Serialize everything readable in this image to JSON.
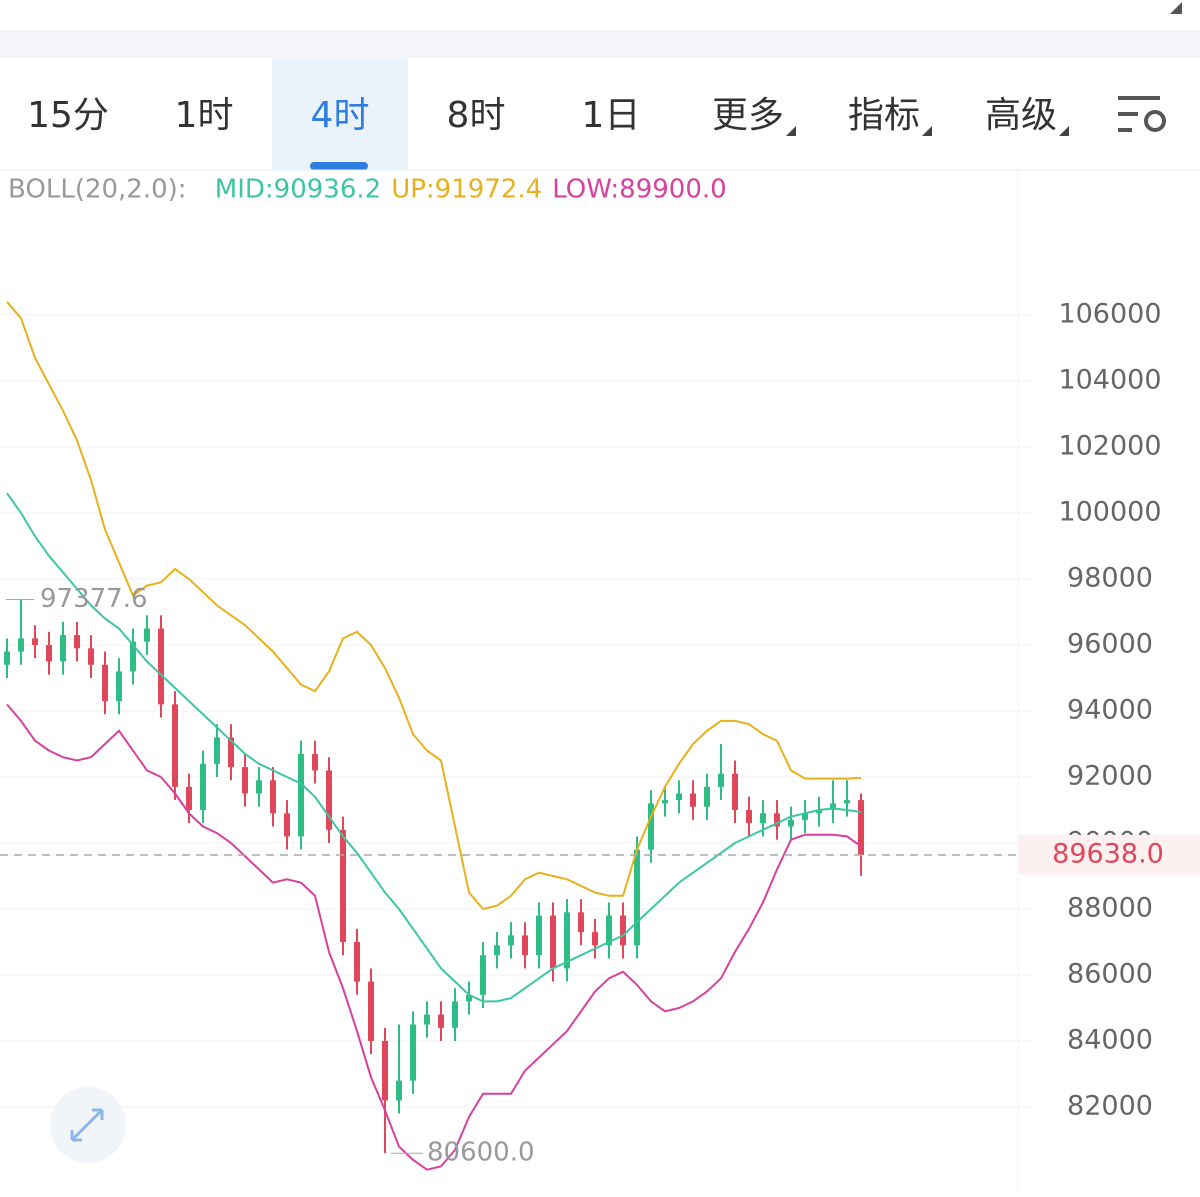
{
  "tabs": {
    "items": [
      "15分",
      "1时",
      "4时",
      "8时",
      "1日",
      "更多",
      "指标",
      "高级"
    ],
    "active": 2
  },
  "chart_data": {
    "type": "candlestick",
    "indicator": "BOLL(20,2.0):",
    "colors": {
      "up": "#2ebd85",
      "down": "#e0475b"
    },
    "ylim": [
      80000,
      108000
    ],
    "yticks": [
      82000,
      84000,
      86000,
      88000,
      90000,
      92000,
      94000,
      96000,
      98000,
      100000,
      102000,
      104000,
      106000
    ],
    "grid": true,
    "open": [
      95400,
      95800,
      96200,
      96000,
      95500,
      96300,
      95900,
      95400,
      94300,
      95200,
      96100,
      96500,
      94200,
      91700,
      91000,
      92400,
      93200,
      92300,
      91500,
      91900,
      90900,
      90200,
      92700,
      92200,
      90400,
      87000,
      85800,
      84000,
      82200,
      82800,
      84500,
      84800,
      84400,
      85200,
      85400,
      86600,
      86900,
      87200,
      86600,
      87800,
      86200,
      87900,
      87300,
      86900,
      87800,
      86900,
      89800,
      91200,
      91300,
      91500,
      91100,
      91700,
      92100,
      91000,
      90600,
      90900,
      90500,
      90700,
      90900,
      91000,
      91200,
      91300
    ],
    "high": [
      96200,
      97377.6,
      96600,
      96400,
      96700,
      96700,
      96300,
      95800,
      95600,
      96500,
      96900,
      96900,
      94600,
      92100,
      92800,
      93600,
      93600,
      92700,
      92300,
      92300,
      91300,
      93100,
      93100,
      92600,
      90800,
      87400,
      86200,
      84400,
      84500,
      84900,
      85200,
      85200,
      85600,
      85800,
      87000,
      87300,
      87600,
      87600,
      88200,
      88200,
      88300,
      88300,
      87700,
      88200,
      88200,
      90200,
      91600,
      91700,
      91900,
      91900,
      92100,
      93000,
      92500,
      91400,
      91300,
      91300,
      91100,
      91300,
      91400,
      91900,
      91900,
      91500
    ],
    "low": [
      95000,
      95400,
      95600,
      95100,
      95100,
      95500,
      95000,
      93900,
      93900,
      94800,
      95700,
      93800,
      91300,
      90600,
      90600,
      92000,
      91900,
      91100,
      91100,
      90500,
      89800,
      89800,
      91800,
      90000,
      86600,
      85400,
      83600,
      80600,
      81800,
      82400,
      84100,
      84000,
      84000,
      84800,
      85000,
      86200,
      86500,
      86200,
      86200,
      85800,
      85800,
      86900,
      86500,
      86500,
      86500,
      86500,
      89400,
      90800,
      90900,
      90700,
      90700,
      91300,
      90600,
      90200,
      90200,
      90100,
      90100,
      90300,
      90500,
      90600,
      90800,
      89000
    ],
    "close": [
      95800,
      96200,
      96000,
      95500,
      96300,
      95900,
      95400,
      94300,
      95200,
      96100,
      96500,
      94200,
      91700,
      91000,
      92400,
      93200,
      92300,
      91500,
      91900,
      90900,
      90200,
      92700,
      92200,
      90400,
      87000,
      85800,
      84000,
      82200,
      82800,
      84500,
      84800,
      84400,
      85200,
      85400,
      86600,
      86900,
      87200,
      86600,
      87800,
      86200,
      87900,
      87300,
      86900,
      87800,
      86900,
      89800,
      91200,
      91300,
      91500,
      91100,
      91700,
      92100,
      91000,
      90600,
      90900,
      90500,
      90700,
      90900,
      91000,
      91200,
      91300,
      89638
    ],
    "series": [
      {
        "name": "MID:90936.2",
        "color": "#3cc6a2",
        "values": [
          100600,
          100000,
          99300,
          98700,
          98200,
          97700,
          97200,
          96800,
          96500,
          96000,
          95500,
          95100,
          94700,
          94300,
          93900,
          93500,
          93100,
          92700,
          92400,
          92200,
          92000,
          91800,
          91400,
          90800,
          90200,
          89700,
          89100,
          88500,
          88000,
          87400,
          86800,
          86200,
          85800,
          85400,
          85200,
          85200,
          85300,
          85600,
          85900,
          86200,
          86400,
          86600,
          86800,
          87000,
          87200,
          87600,
          88000,
          88400,
          88800,
          89100,
          89400,
          89700,
          90000,
          90200,
          90400,
          90600,
          90800,
          90900,
          91000,
          91050,
          91000,
          90936.2
        ]
      },
      {
        "name": "UP:91972.4",
        "color": "#e8b01c",
        "values": [
          106400,
          105900,
          104700,
          103900,
          103100,
          102200,
          101000,
          99500,
          98500,
          97500,
          97800,
          97900,
          98300,
          98000,
          97600,
          97200,
          96900,
          96600,
          96200,
          95800,
          95300,
          94800,
          94600,
          95200,
          96200,
          96400,
          96000,
          95300,
          94400,
          93300,
          92800,
          92500,
          90500,
          88500,
          88000,
          88100,
          88400,
          88900,
          89100,
          89000,
          88900,
          88700,
          88500,
          88400,
          88400,
          89800,
          90800,
          91700,
          92400,
          93000,
          93400,
          93700,
          93700,
          93600,
          93300,
          93100,
          92200,
          91950,
          91950,
          91950,
          91950,
          91972.4
        ]
      },
      {
        "name": "LOW:89900.0",
        "color": "#d6409f",
        "values": [
          94200,
          93700,
          93100,
          92800,
          92600,
          92500,
          92600,
          93000,
          93400,
          92800,
          92200,
          92000,
          91500,
          90900,
          90500,
          90300,
          90000,
          89600,
          89200,
          88800,
          88900,
          88800,
          88400,
          86700,
          85600,
          84300,
          82900,
          81900,
          80800,
          80400,
          80100,
          80200,
          80700,
          81700,
          82400,
          82400,
          82400,
          83100,
          83500,
          83900,
          84300,
          84900,
          85500,
          85900,
          86100,
          85700,
          85200,
          84900,
          85000,
          85200,
          85500,
          85900,
          86700,
          87400,
          88200,
          89200,
          90100,
          90250,
          90250,
          90250,
          90200,
          89900
        ]
      }
    ],
    "min_label": {
      "value": 80600,
      "label": "80600.0"
    },
    "last_price": {
      "value": 89638,
      "label": "89638.0"
    }
  }
}
